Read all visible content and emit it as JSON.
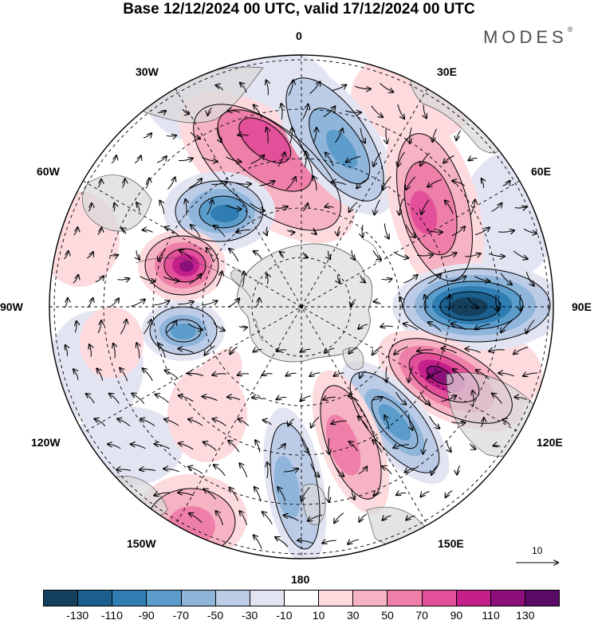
{
  "title": "Base 12/12/2024 00 UTC, valid 17/12/2024 00 UTC",
  "brand": "MODES",
  "brand_mark": "®",
  "longitude_labels": {
    "lon_0": "0",
    "lon_30e": "30E",
    "lon_60e": "60E",
    "lon_90e": "90E",
    "lon_120e": "120E",
    "lon_150e": "150E",
    "lon_180": "180",
    "lon_150w": "150W",
    "lon_120w": "120W",
    "lon_90w": "90W",
    "lon_60w": "60W",
    "lon_30w": "30W"
  },
  "reference_vector_label": "10",
  "colorbar": {
    "colors": [
      "#14405e",
      "#1a5f8e",
      "#2f7db3",
      "#5b9ccb",
      "#8fb5da",
      "#bccbe6",
      "#e3e4f2",
      "#ffffff",
      "#fcdadd",
      "#f6b3c3",
      "#ee7fa8",
      "#e3509a",
      "#c51f8c",
      "#8c0f7a",
      "#5a0b68"
    ],
    "tick_labels": [
      "-130",
      "-110",
      "-90",
      "-70",
      "-50",
      "-30",
      "-10",
      "10",
      "30",
      "50",
      "70",
      "90",
      "110",
      "130"
    ]
  },
  "colors": {
    "land": "#d9d9d9",
    "background": "#ffffff"
  }
}
